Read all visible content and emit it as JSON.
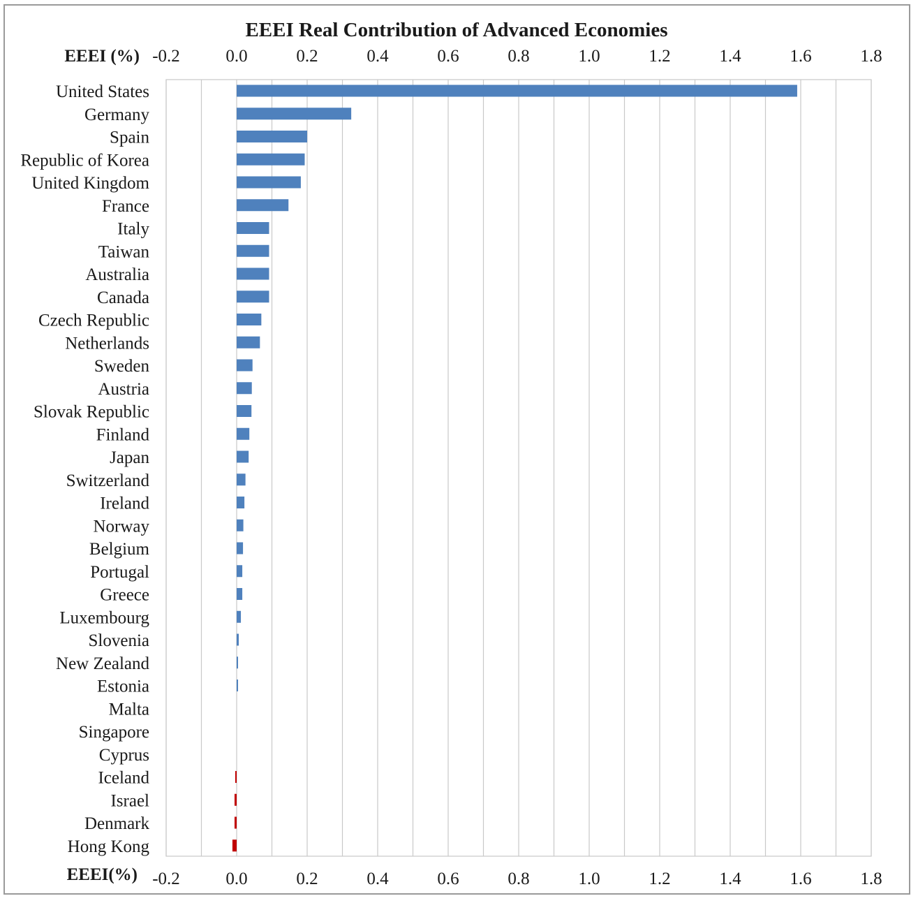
{
  "chart_data": {
    "type": "bar",
    "orientation": "horizontal",
    "title": "EEEI Real Contribution of Advanced Economies",
    "xlabel_top": "EEEI (%)",
    "xlabel_bottom": "EEEI(%)",
    "xlim": [
      -0.2,
      1.8
    ],
    "xticks": [
      "-0.2",
      "0.0",
      "0.2",
      "0.4",
      "0.6",
      "0.8",
      "1.0",
      "1.2",
      "1.4",
      "1.6",
      "1.8"
    ],
    "grid": true,
    "colors": {
      "positive": "#4f81bd",
      "negative": "#c00000"
    },
    "categories": [
      "United States",
      "Germany",
      "Spain",
      "Republic of Korea",
      "United Kingdom",
      "France",
      "Italy",
      "Taiwan",
      "Australia",
      "Canada",
      "Czech Republic",
      "Netherlands",
      "Sweden",
      "Austria",
      "Slovak Republic",
      "Finland",
      "Japan",
      "Switzerland",
      "Ireland",
      "Norway",
      "Belgium",
      "Portugal",
      "Greece",
      "Luxembourg",
      "Slovenia",
      "New Zealand",
      "Estonia",
      "Malta",
      "Singapore",
      "Cyprus",
      "Iceland",
      "Israel",
      "Denmark",
      "Hong Kong"
    ],
    "values": [
      1.59,
      0.325,
      0.2,
      0.193,
      0.182,
      0.147,
      0.092,
      0.092,
      0.092,
      0.092,
      0.07,
      0.066,
      0.045,
      0.043,
      0.042,
      0.036,
      0.034,
      0.025,
      0.022,
      0.019,
      0.018,
      0.016,
      0.016,
      0.012,
      0.006,
      0.003,
      0.003,
      0.0,
      0.0,
      0.0,
      -0.004,
      -0.006,
      -0.006,
      -0.012
    ]
  }
}
